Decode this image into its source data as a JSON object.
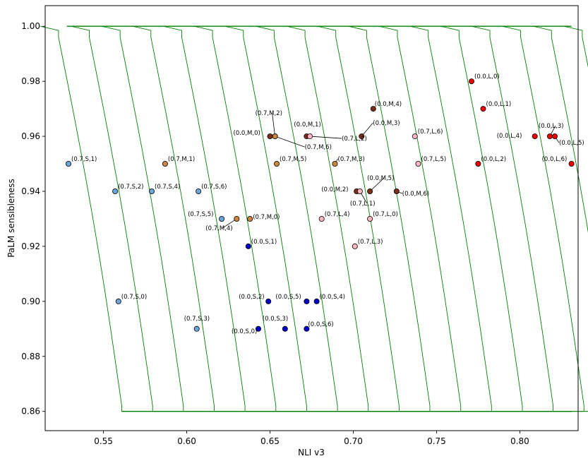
{
  "chart_data": {
    "type": "scatter",
    "title": "",
    "xlabel": "NLI v3",
    "ylabel": "PaLM sensibleness",
    "xlim": [
      0.515,
      0.835
    ],
    "ylim": [
      0.853,
      1.0075
    ],
    "xticks": [
      "0.55",
      "0.60",
      "0.65",
      "0.70",
      "0.75",
      "0.80"
    ],
    "yticks": [
      "0.86",
      "0.88",
      "0.90",
      "0.92",
      "0.94",
      "0.96",
      "0.98",
      "1.00"
    ],
    "grid": false,
    "legend": "none",
    "contour_color": "#008000",
    "point_colors": {
      "S-0.7": "#6ca6d9",
      "S-0.0": "#0000cd",
      "M-0.7": "#cd853f",
      "M-0.0": "#7a3018",
      "L-0.7": "#ffb6c1",
      "L-0.0": "#ee0000"
    },
    "points": [
      {
        "label": "(0.7,S,1)",
        "x": 0.529,
        "y": 0.95,
        "group": "S-0.7"
      },
      {
        "label": "(0.7,S,2)",
        "x": 0.557,
        "y": 0.94,
        "group": "S-0.7"
      },
      {
        "label": "(0.7,S,4)",
        "x": 0.579,
        "y": 0.94,
        "group": "S-0.7"
      },
      {
        "label": "(0.7,S,6)",
        "x": 0.607,
        "y": 0.94,
        "group": "S-0.7"
      },
      {
        "label": "(0.7,S,5)",
        "x": 0.621,
        "y": 0.93,
        "group": "S-0.7"
      },
      {
        "label": "(0.7,S,0)",
        "x": 0.559,
        "y": 0.9,
        "group": "S-0.7"
      },
      {
        "label": "(0.7,S,3)",
        "x": 0.606,
        "y": 0.89,
        "group": "S-0.7"
      },
      {
        "label": "(0.0,S,1)",
        "x": 0.637,
        "y": 0.92,
        "group": "S-0.0"
      },
      {
        "label": "(0.0,S,2)",
        "x": 0.649,
        "y": 0.9,
        "group": "S-0.0"
      },
      {
        "label": "(0.0,S,5)",
        "x": 0.672,
        "y": 0.9,
        "group": "S-0.0"
      },
      {
        "label": "(0.0,S,4)",
        "x": 0.678,
        "y": 0.9,
        "group": "S-0.0"
      },
      {
        "label": "(0.0,S,0)",
        "x": 0.643,
        "y": 0.89,
        "group": "S-0.0"
      },
      {
        "label": "(0.0,S,3)",
        "x": 0.659,
        "y": 0.89,
        "group": "S-0.0"
      },
      {
        "label": "(0.0,S,6)",
        "x": 0.672,
        "y": 0.89,
        "group": "S-0.0"
      },
      {
        "label": "(0.7,M,1)",
        "x": 0.587,
        "y": 0.95,
        "group": "M-0.7"
      },
      {
        "label": "(0.7,M,2)",
        "x": 0.653,
        "y": 0.96,
        "group": "M-0.7"
      },
      {
        "label": "(0.7,M,6)",
        "x": 0.653,
        "y": 0.96,
        "group": "M-0.7"
      },
      {
        "label": "(0.7,M,5)",
        "x": 0.654,
        "y": 0.95,
        "group": "M-0.7"
      },
      {
        "label": "(0.7,M,3)",
        "x": 0.689,
        "y": 0.95,
        "group": "M-0.7"
      },
      {
        "label": "(0.7,M,4)",
        "x": 0.63,
        "y": 0.93,
        "group": "M-0.7"
      },
      {
        "label": "(0.7,M,0)",
        "x": 0.638,
        "y": 0.93,
        "group": "M-0.7"
      },
      {
        "label": "(0.0,M,0)",
        "x": 0.65,
        "y": 0.96,
        "group": "M-0.0"
      },
      {
        "label": "(0.0,M,1)",
        "x": 0.672,
        "y": 0.96,
        "group": "M-0.0"
      },
      {
        "label": "(0.0,M,4)",
        "x": 0.712,
        "y": 0.97,
        "group": "M-0.0"
      },
      {
        "label": "(0.0,M,3)",
        "x": 0.705,
        "y": 0.96,
        "group": "M-0.0"
      },
      {
        "label": "(0.0,M,2)",
        "x": 0.702,
        "y": 0.94,
        "group": "M-0.0"
      },
      {
        "label": "(0.0,M,5)",
        "x": 0.71,
        "y": 0.94,
        "group": "M-0.0"
      },
      {
        "label": "(0.0,M,6)",
        "x": 0.726,
        "y": 0.94,
        "group": "M-0.0"
      },
      {
        "label": "(0.7,L,2)",
        "x": 0.674,
        "y": 0.96,
        "group": "L-0.7"
      },
      {
        "label": "(0.7,L,6)",
        "x": 0.737,
        "y": 0.96,
        "group": "L-0.7"
      },
      {
        "label": "(0.7,L,5)",
        "x": 0.739,
        "y": 0.95,
        "group": "L-0.7"
      },
      {
        "label": "(0.7,L,1)",
        "x": 0.704,
        "y": 0.94,
        "group": "L-0.7"
      },
      {
        "label": "(0.7,L,4)",
        "x": 0.681,
        "y": 0.93,
        "group": "L-0.7"
      },
      {
        "label": "(0.7,L,0)",
        "x": 0.71,
        "y": 0.93,
        "group": "L-0.7"
      },
      {
        "label": "(0.7,L,3)",
        "x": 0.701,
        "y": 0.92,
        "group": "L-0.7"
      },
      {
        "label": "(0.0,L,0)",
        "x": 0.771,
        "y": 0.98,
        "group": "L-0.0"
      },
      {
        "label": "(0.0,L,1)",
        "x": 0.778,
        "y": 0.97,
        "group": "L-0.0"
      },
      {
        "label": "(0.0,L,4)",
        "x": 0.809,
        "y": 0.96,
        "group": "L-0.0"
      },
      {
        "label": "(0.0,L,3)",
        "x": 0.818,
        "y": 0.96,
        "group": "L-0.0"
      },
      {
        "label": "(0.0,L,5)",
        "x": 0.821,
        "y": 0.96,
        "group": "L-0.0"
      },
      {
        "label": "(0.0,L,2)",
        "x": 0.775,
        "y": 0.95,
        "group": "L-0.0"
      },
      {
        "label": "(0.0,L,6)",
        "x": 0.831,
        "y": 0.95,
        "group": "L-0.0"
      }
    ]
  }
}
